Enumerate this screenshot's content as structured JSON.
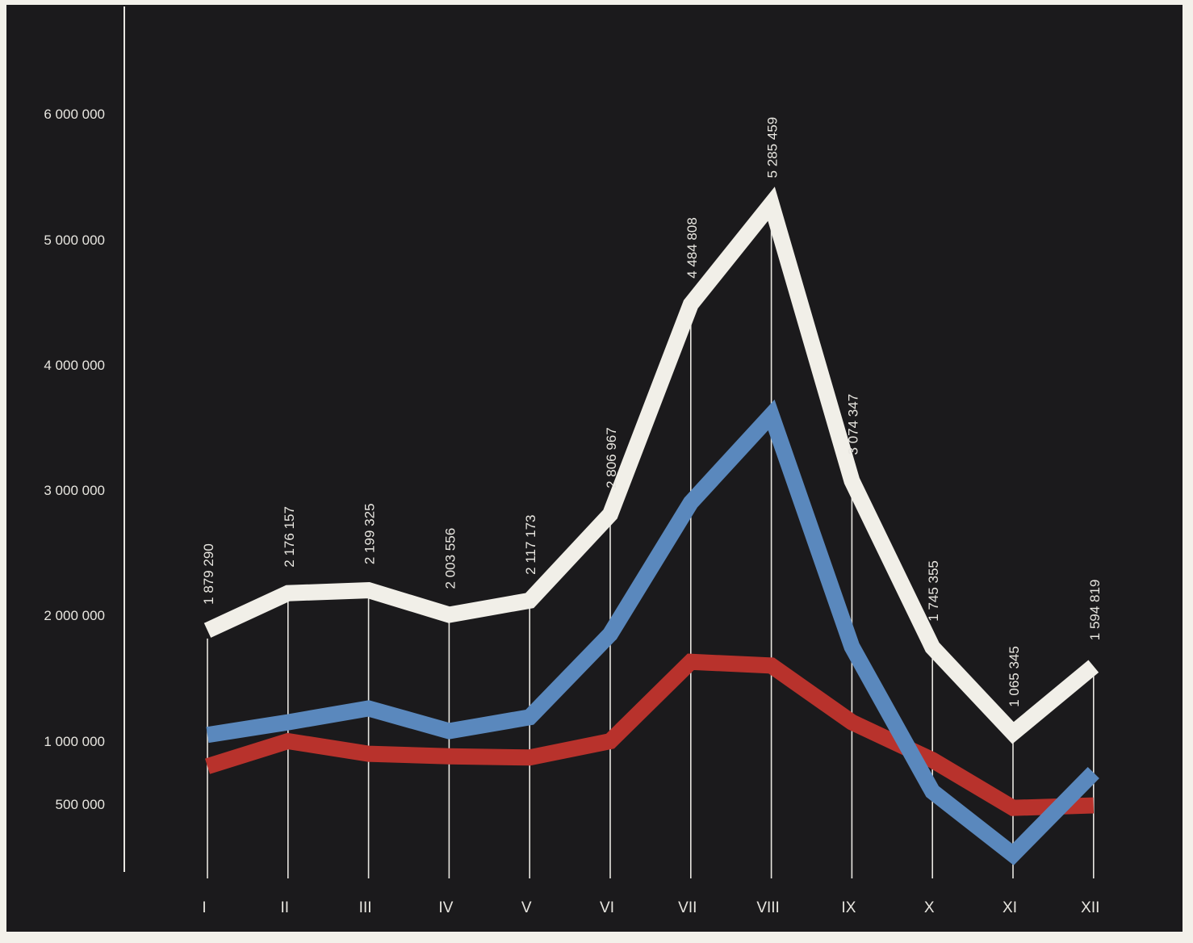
{
  "chart_data": {
    "type": "line",
    "categories": [
      "I",
      "II",
      "III",
      "IV",
      "V",
      "VI",
      "VII",
      "VIII",
      "IX",
      "X",
      "XI",
      "XII"
    ],
    "y_tick_labels": [
      {
        "value": 6000000,
        "label": "6 000 000"
      },
      {
        "value": 5000000,
        "label": "5 000 000"
      },
      {
        "value": 4000000,
        "label": "4 000 000"
      },
      {
        "value": 3000000,
        "label": "3 000 000"
      },
      {
        "value": 2000000,
        "label": "2 000 000"
      },
      {
        "value": 1000000,
        "label": "1 000 000"
      },
      {
        "value": 500000,
        "label": "500 000"
      }
    ],
    "ylim": [
      -500000,
      6500000
    ],
    "grid": false,
    "legend": "none",
    "series": [
      {
        "color": "#f1efe8",
        "values": [
          1879290,
          2176157,
          2199325,
          2003556,
          2117173,
          2806967,
          4484808,
          5285459,
          3074347,
          1745355,
          1065345,
          1594819
        ],
        "labels": [
          "1 879 290",
          "2 176 157",
          "2 199 325",
          "2 003 556",
          "2 117 173",
          "2 806 967",
          "4 484 808",
          "5 285 459",
          "3 074 347",
          "1 745 355",
          "1 065 345",
          "1 594 819"
        ]
      },
      {
        "color": "#5a88bd",
        "values": [
          1050000,
          1150000,
          1260000,
          1080000,
          1190000,
          1850000,
          2900000,
          3600000,
          1750000,
          600000,
          100000,
          750000
        ]
      },
      {
        "color": "#b8322c",
        "values": [
          800000,
          1000000,
          900000,
          880000,
          870000,
          1000000,
          1630000,
          1600000,
          1150000,
          850000,
          470000,
          490000
        ]
      }
    ]
  }
}
